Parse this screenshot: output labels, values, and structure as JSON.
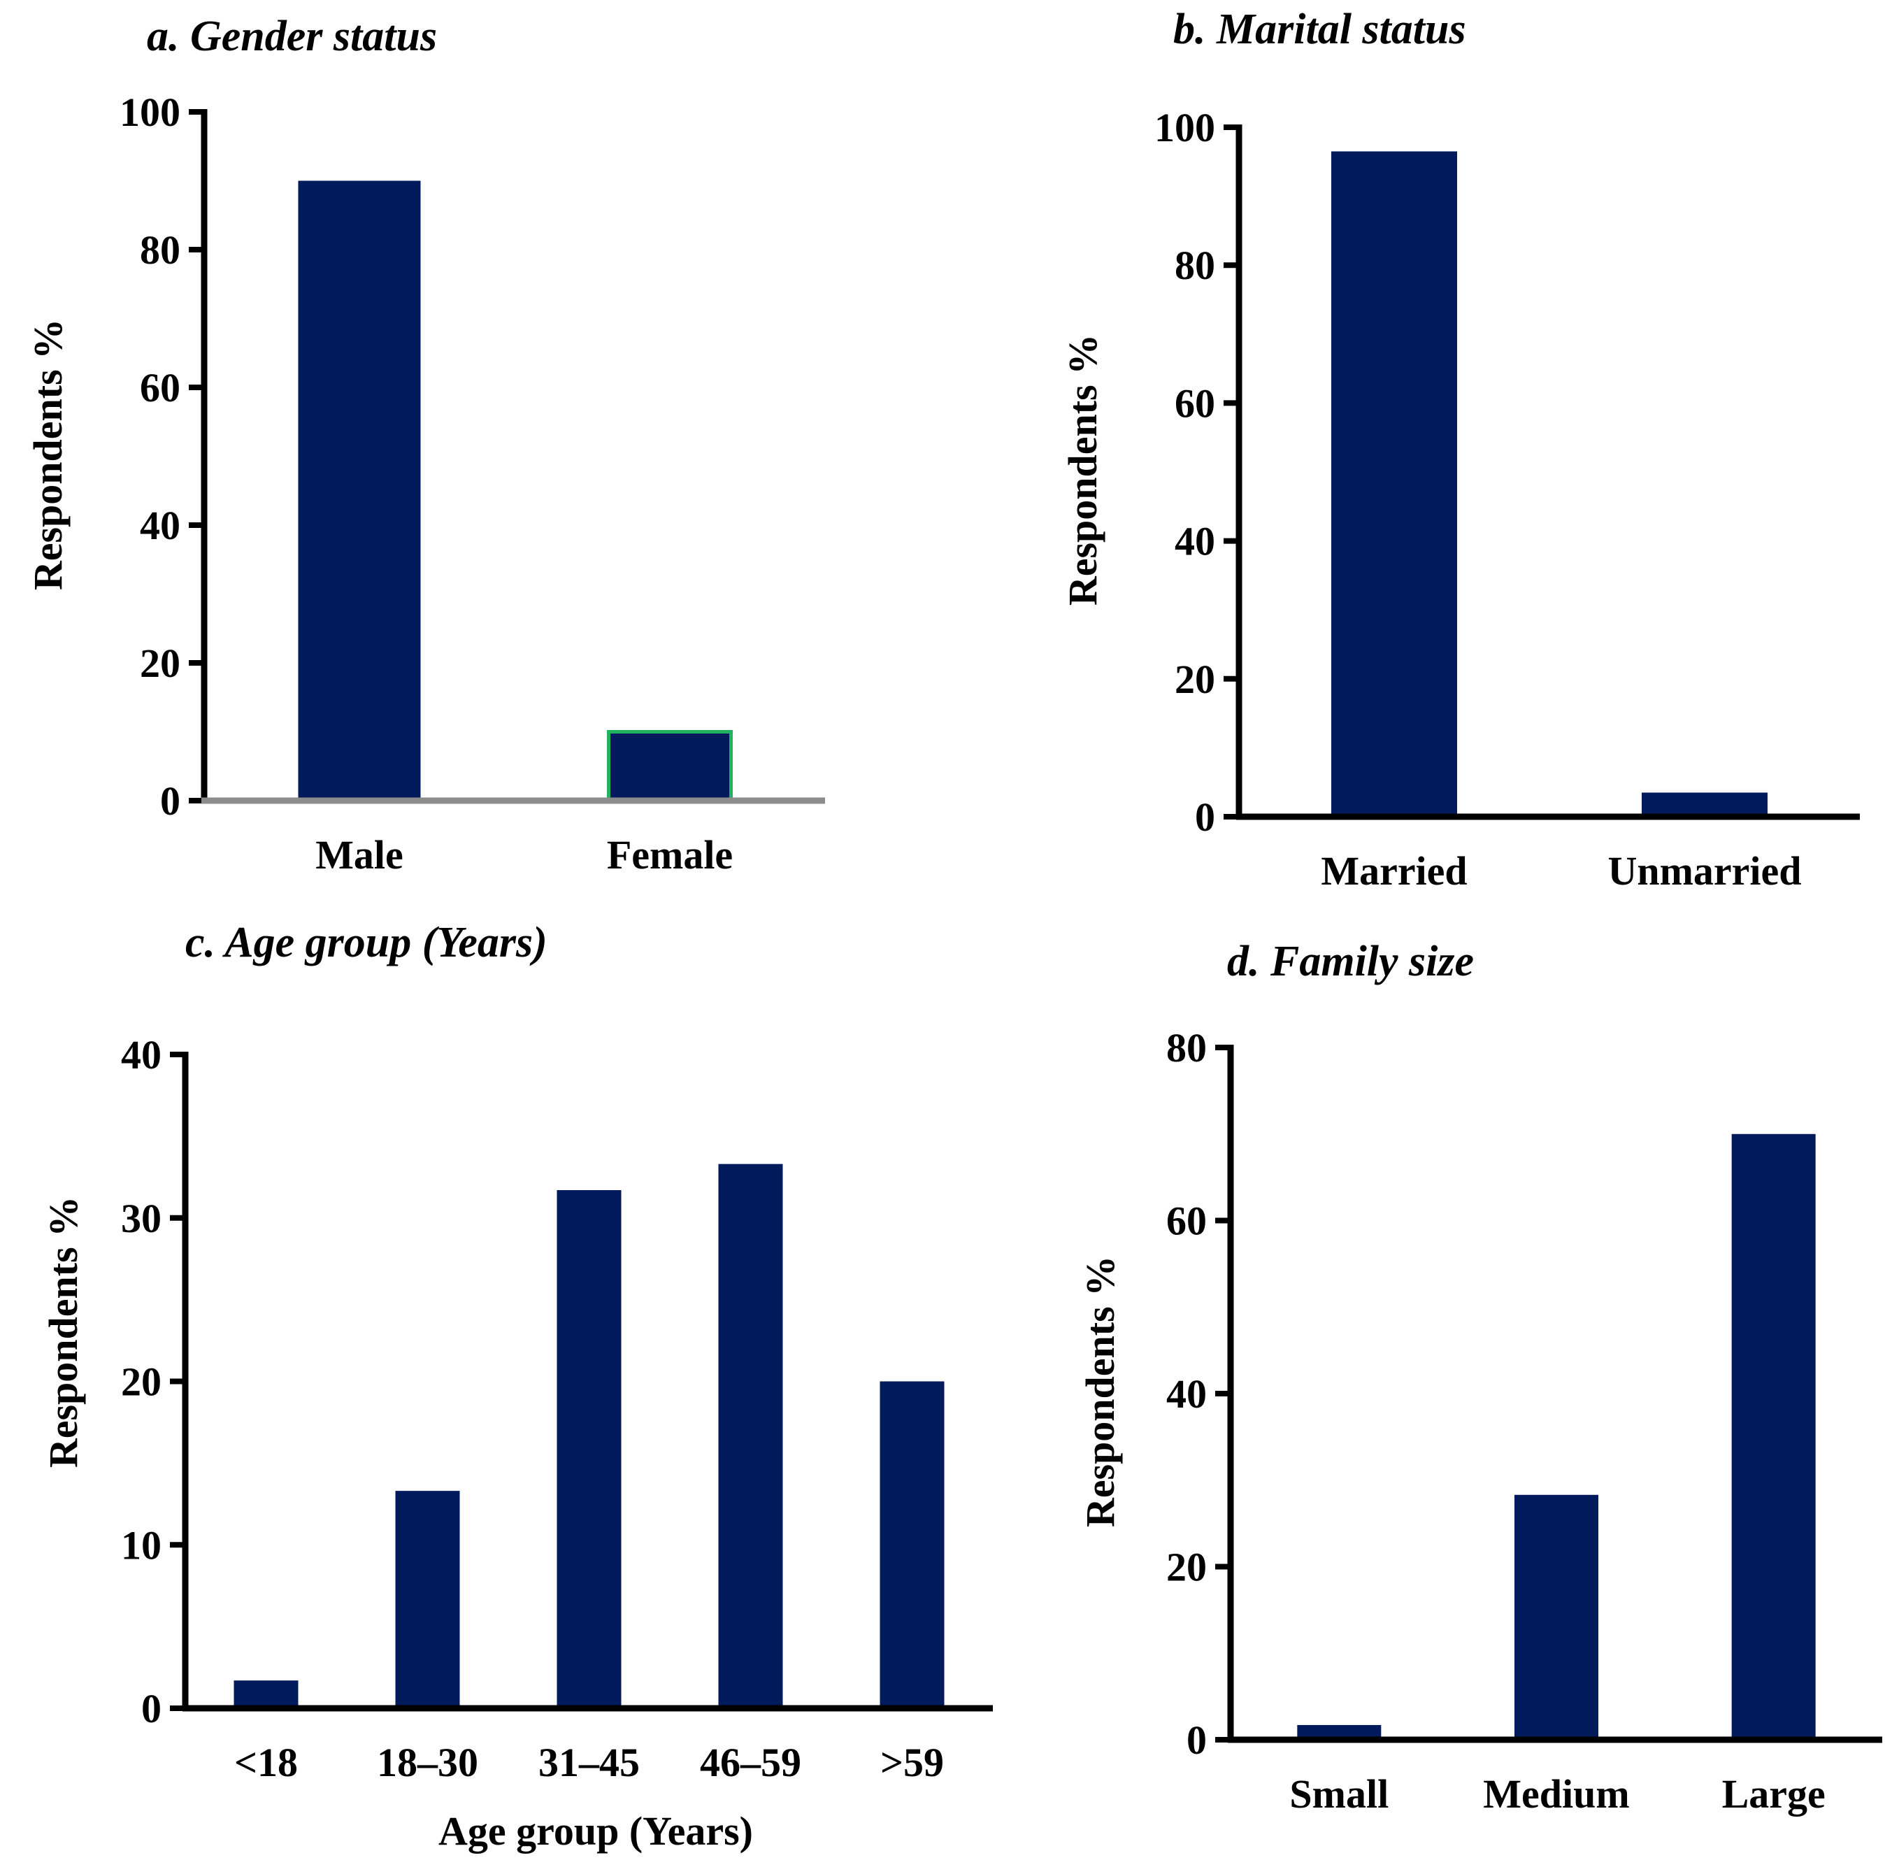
{
  "bar_color": "#001a5c",
  "axis_color": "#000000",
  "chart_data": [
    {
      "id": "a",
      "type": "bar",
      "title": "a. Gender status",
      "ylabel": "Respondents %",
      "xlabel": "",
      "categories": [
        "Male",
        "Female"
      ],
      "values": [
        90,
        10
      ],
      "ylim": [
        0,
        100
      ],
      "yticks": [
        0,
        20,
        40,
        60,
        80,
        100
      ],
      "baseline_color": "#8c8c8c",
      "highlight_index": 1,
      "highlight_color": "#22b35e",
      "grid": false
    },
    {
      "id": "b",
      "type": "bar",
      "title": "b. Marital status",
      "ylabel": "Respondents %",
      "xlabel": "",
      "categories": [
        "Married",
        "Unmarried"
      ],
      "values": [
        96.5,
        3.5
      ],
      "ylim": [
        0,
        100
      ],
      "yticks": [
        0,
        20,
        40,
        60,
        80,
        100
      ],
      "grid": false
    },
    {
      "id": "c",
      "type": "bar",
      "title": "c. Age group (Years)",
      "ylabel": "Respondents %",
      "xlabel": "Age group (Years)",
      "categories": [
        "<18",
        "18–30",
        "31–45",
        "46–59",
        ">59"
      ],
      "values": [
        1.7,
        13.3,
        31.7,
        33.3,
        20
      ],
      "ylim": [
        0,
        40
      ],
      "yticks": [
        0,
        10,
        20,
        30,
        40
      ],
      "grid": false
    },
    {
      "id": "d",
      "type": "bar",
      "title": "d.  Family size",
      "ylabel": "Respondents %",
      "xlabel": "",
      "categories": [
        "Small",
        "Medium",
        "Large"
      ],
      "values": [
        1.7,
        28.3,
        70
      ],
      "ylim": [
        0,
        80
      ],
      "yticks": [
        0,
        20,
        40,
        60,
        80
      ],
      "grid": false
    }
  ]
}
